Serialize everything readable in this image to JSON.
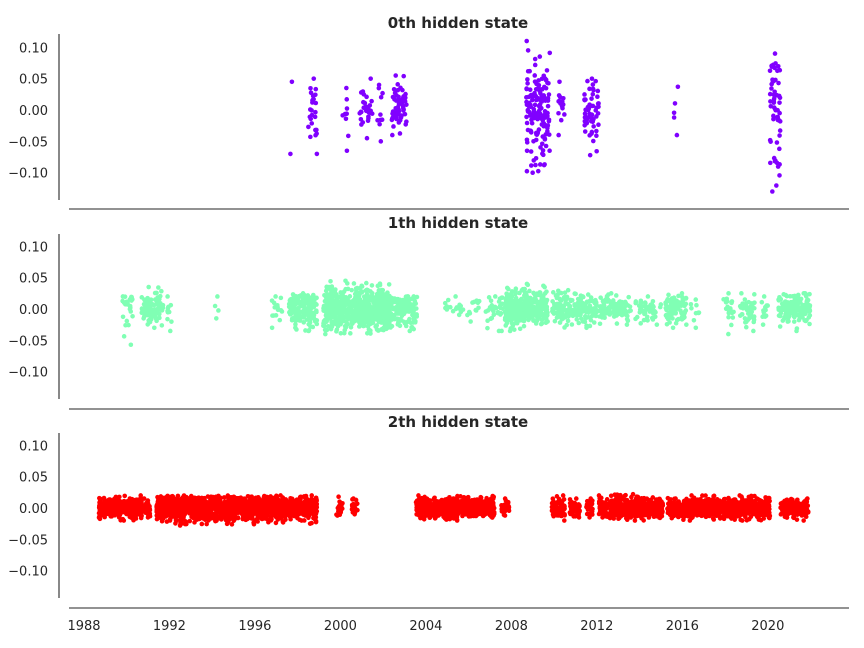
{
  "chart_data": [
    {
      "type": "scatter",
      "title": "0th hidden state",
      "color": "#8000ff",
      "ylim": [
        -0.15,
        0.12
      ],
      "yticks": [
        "0.10",
        "0.05",
        "0.00",
        "−0.05",
        "−0.10"
      ],
      "xlim": [
        1987.3,
        2023.8
      ],
      "regimes": [
        {
          "x": [
            1997.6,
            1997.8
          ],
          "y": [
            -0.07,
            0.045
          ],
          "n": 2
        },
        {
          "x": [
            1998.5,
            1998.9
          ],
          "y": [
            -0.07,
            0.05
          ],
          "n": 26
        },
        {
          "x": [
            2000.1,
            2000.5
          ],
          "y": [
            -0.065,
            0.035
          ],
          "n": 9
        },
        {
          "x": [
            2000.9,
            2001.5
          ],
          "y": [
            -0.045,
            0.05
          ],
          "n": 30
        },
        {
          "x": [
            2001.6,
            2002.0
          ],
          "y": [
            -0.05,
            0.04
          ],
          "n": 10
        },
        {
          "x": [
            2002.4,
            2003.1
          ],
          "y": [
            -0.04,
            0.055
          ],
          "n": 60
        },
        {
          "x": [
            2008.7,
            2009.8
          ],
          "y": [
            -0.1,
            0.11
          ],
          "n": 150
        },
        {
          "x": [
            2010.2,
            2010.5
          ],
          "y": [
            -0.04,
            0.045
          ],
          "n": 15
        },
        {
          "x": [
            2011.4,
            2012.1
          ],
          "y": [
            -0.072,
            0.05
          ],
          "n": 60
        },
        {
          "x": [
            2015.6,
            2015.8
          ],
          "y": [
            -0.04,
            0.037
          ],
          "n": 5
        },
        {
          "x": [
            2020.1,
            2020.6
          ],
          "y": [
            -0.13,
            0.09
          ],
          "n": 60
        }
      ]
    },
    {
      "type": "scatter",
      "title": "1th hidden state",
      "color": "#80ffb4",
      "ylim": [
        -0.15,
        0.12
      ],
      "yticks": [
        "0.10",
        "0.05",
        "0.00",
        "−0.05",
        "−0.10"
      ],
      "xlim": [
        1987.3,
        2023.8
      ],
      "regimes": [
        {
          "x": [
            1989.8,
            1990.3
          ],
          "y": [
            -0.057,
            0.02
          ],
          "n": 25
        },
        {
          "x": [
            1990.7,
            1991.7
          ],
          "y": [
            -0.03,
            0.035
          ],
          "n": 100
        },
        {
          "x": [
            1991.9,
            1992.1
          ],
          "y": [
            -0.035,
            0.02
          ],
          "n": 10
        },
        {
          "x": [
            1994.1,
            1994.3
          ],
          "y": [
            -0.015,
            0.02
          ],
          "n": 4
        },
        {
          "x": [
            1996.8,
            1997.3
          ],
          "y": [
            -0.03,
            0.02
          ],
          "n": 15
        },
        {
          "x": [
            1997.6,
            1998.9
          ],
          "y": [
            -0.035,
            0.025
          ],
          "n": 180
        },
        {
          "x": [
            1999.2,
            2002.3
          ],
          "y": [
            -0.04,
            0.045
          ],
          "n": 650
        },
        {
          "x": [
            2002.3,
            2003.6
          ],
          "y": [
            -0.035,
            0.02
          ],
          "n": 140
        },
        {
          "x": [
            2004.9,
            2006.6
          ],
          "y": [
            -0.02,
            0.02
          ],
          "n": 30
        },
        {
          "x": [
            2006.8,
            2007.6
          ],
          "y": [
            -0.035,
            0.02
          ],
          "n": 30
        },
        {
          "x": [
            2007.7,
            2009.7
          ],
          "y": [
            -0.035,
            0.04
          ],
          "n": 350
        },
        {
          "x": [
            2009.9,
            2012.0
          ],
          "y": [
            -0.03,
            0.03
          ],
          "n": 200
        },
        {
          "x": [
            2012.1,
            2013.6
          ],
          "y": [
            -0.025,
            0.025
          ],
          "n": 100
        },
        {
          "x": [
            2013.8,
            2015.0
          ],
          "y": [
            -0.025,
            0.02
          ],
          "n": 50
        },
        {
          "x": [
            2015.2,
            2016.2
          ],
          "y": [
            -0.03,
            0.025
          ],
          "n": 100
        },
        {
          "x": [
            2016.4,
            2016.8
          ],
          "y": [
            -0.03,
            0.015
          ],
          "n": 10
        },
        {
          "x": [
            2017.9,
            2018.4
          ],
          "y": [
            -0.04,
            0.025
          ],
          "n": 20
        },
        {
          "x": [
            2018.7,
            2019.4
          ],
          "y": [
            -0.035,
            0.025
          ],
          "n": 50
        },
        {
          "x": [
            2019.7,
            2020.0
          ],
          "y": [
            -0.025,
            0.02
          ],
          "n": 15
        },
        {
          "x": [
            2020.5,
            2022.0
          ],
          "y": [
            -0.035,
            0.025
          ],
          "n": 150
        }
      ]
    },
    {
      "type": "scatter",
      "title": "2th hidden state",
      "color": "#ff0000",
      "ylim": [
        -0.15,
        0.12
      ],
      "yticks": [
        "0.10",
        "0.05",
        "0.00",
        "−0.05",
        "−0.10"
      ],
      "xlim": [
        1987.3,
        2023.8
      ],
      "xticks": [
        1988,
        1992,
        1996,
        2000,
        2004,
        2008,
        2012,
        2016,
        2020
      ],
      "regimes": [
        {
          "x": [
            1988.7,
            1990.7
          ],
          "y": [
            -0.02,
            0.02
          ],
          "n": 350
        },
        {
          "x": [
            1990.8,
            1991.1
          ],
          "y": [
            -0.015,
            0.015
          ],
          "n": 40
        },
        {
          "x": [
            1991.4,
            1997.4
          ],
          "y": [
            -0.028,
            0.02
          ],
          "n": 1100
        },
        {
          "x": [
            1997.4,
            1998.3
          ],
          "y": [
            -0.02,
            0.018
          ],
          "n": 150
        },
        {
          "x": [
            1998.3,
            1998.9
          ],
          "y": [
            -0.025,
            0.02
          ],
          "n": 100
        },
        {
          "x": [
            1999.8,
            2000.1
          ],
          "y": [
            -0.012,
            0.018
          ],
          "n": 25
        },
        {
          "x": [
            2000.5,
            2000.8
          ],
          "y": [
            -0.01,
            0.015
          ],
          "n": 20
        },
        {
          "x": [
            2003.5,
            2007.2
          ],
          "y": [
            -0.02,
            0.02
          ],
          "n": 700
        },
        {
          "x": [
            2007.5,
            2007.9
          ],
          "y": [
            -0.012,
            0.015
          ],
          "n": 30
        },
        {
          "x": [
            2009.9,
            2010.5
          ],
          "y": [
            -0.02,
            0.02
          ],
          "n": 80
        },
        {
          "x": [
            2010.7,
            2011.2
          ],
          "y": [
            -0.015,
            0.015
          ],
          "n": 50
        },
        {
          "x": [
            2011.5,
            2011.8
          ],
          "y": [
            -0.015,
            0.015
          ],
          "n": 30
        },
        {
          "x": [
            2012.1,
            2012.5
          ],
          "y": [
            -0.015,
            0.02
          ],
          "n": 50
        },
        {
          "x": [
            2012.6,
            2015.1
          ],
          "y": [
            -0.02,
            0.022
          ],
          "n": 450
        },
        {
          "x": [
            2015.3,
            2017.8
          ],
          "y": [
            -0.02,
            0.02
          ],
          "n": 450
        },
        {
          "x": [
            2017.9,
            2020.1
          ],
          "y": [
            -0.02,
            0.02
          ],
          "n": 380
        },
        {
          "x": [
            2020.6,
            2021.9
          ],
          "y": [
            -0.02,
            0.015
          ],
          "n": 200
        }
      ]
    }
  ]
}
